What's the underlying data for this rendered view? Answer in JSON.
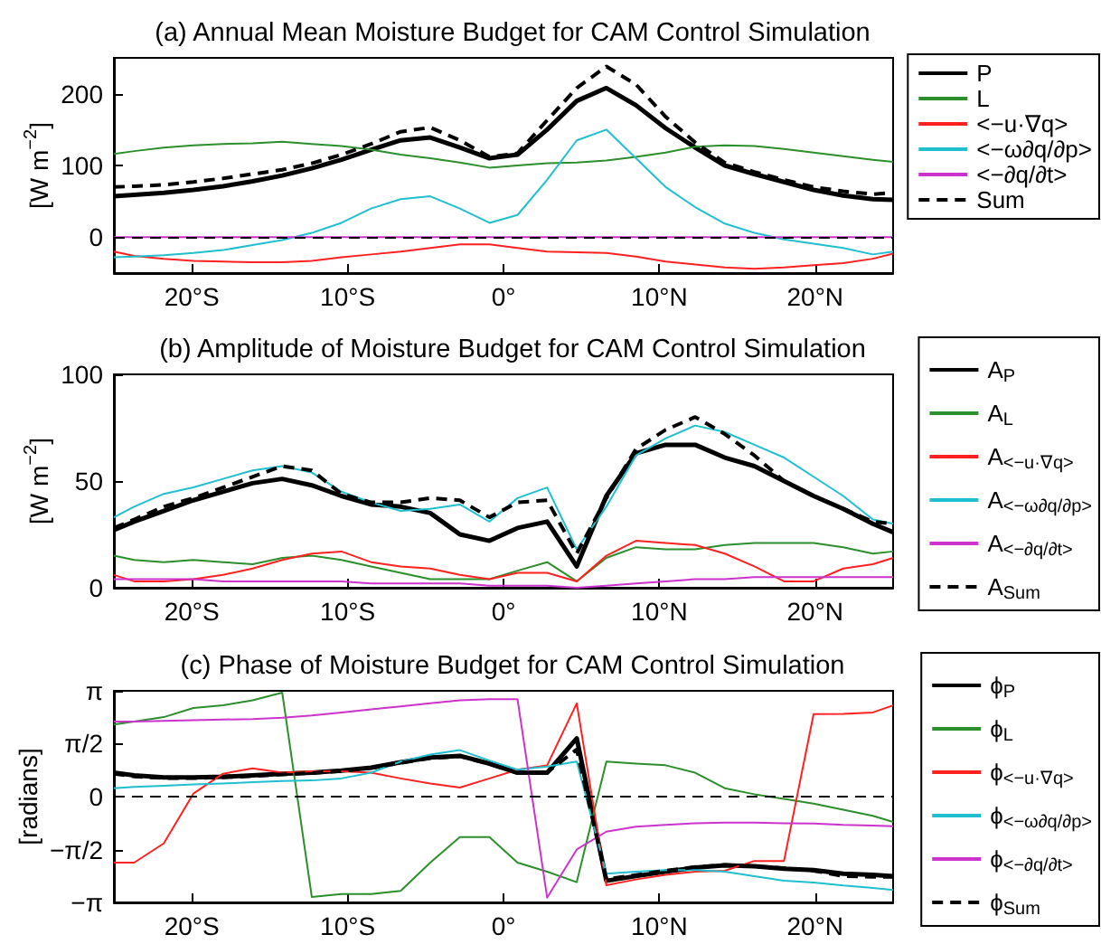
{
  "chart_data": [
    {
      "type": "line",
      "title": "(a) Annual Mean Moisture Budget for CAM Control Simulation",
      "ylabel": "[W m$^{−2}$]",
      "x": [
        -25,
        -23.7,
        -21.8,
        -19.9,
        -18,
        -16.1,
        -14.2,
        -12.3,
        -10.4,
        -8.5,
        -6.6,
        -4.7,
        -2.8,
        -0.9,
        0.9,
        2.8,
        4.7,
        6.6,
        8.5,
        10.4,
        12.3,
        14.2,
        16.1,
        18,
        19.9,
        21.8,
        23.7,
        25
      ],
      "series": [
        {
          "name": "P",
          "color": "#000000",
          "values": [
            57,
            59,
            62,
            66,
            71,
            78,
            86,
            96,
            108,
            122,
            135,
            139,
            125,
            110,
            115,
            150,
            190,
            208,
            184,
            152,
            125,
            100,
            88,
            77,
            66,
            58,
            53,
            52
          ]
        },
        {
          "name": "L",
          "color": "#2b8f2b",
          "values": [
            116,
            120,
            125,
            128,
            130,
            131,
            133,
            130,
            127,
            122,
            115,
            110,
            104,
            97,
            100,
            103,
            104,
            107,
            112,
            118,
            126,
            128,
            127,
            123,
            118,
            113,
            108,
            105
          ]
        },
        {
          "name": "<−u·∇q>",
          "color": "#ff2020",
          "values": [
            -20,
            -26,
            -30,
            -33,
            -34,
            -35,
            -35,
            -33,
            -28,
            -24,
            -20,
            -15,
            -10,
            -10,
            -15,
            -20,
            -21,
            -22,
            -27,
            -34,
            -38,
            -42,
            -44,
            -42,
            -39,
            -36,
            -30,
            -23
          ]
        },
        {
          "name": "<−ω∂q/∂p>",
          "color": "#1fbfcf",
          "values": [
            -28,
            -27,
            -25,
            -22,
            -18,
            -11,
            -4,
            6,
            20,
            40,
            53,
            57,
            40,
            20,
            31,
            80,
            135,
            150,
            110,
            70,
            42,
            19,
            6,
            -3,
            -9,
            -15,
            -24,
            -20
          ]
        },
        {
          "name": "<−∂q/∂t>",
          "color": "#cc33cc",
          "values": [
            0,
            0,
            0,
            0,
            0,
            0,
            0,
            0,
            0,
            0,
            0,
            0,
            0,
            0,
            0,
            0,
            0,
            0,
            0,
            0,
            0,
            0,
            0,
            0,
            0,
            0,
            0,
            0
          ]
        },
        {
          "name": "Sum",
          "color": "#000000",
          "line_style": "dashed",
          "values": [
            70,
            71,
            73,
            77,
            82,
            88,
            94,
            103,
            115,
            130,
            147,
            153,
            135,
            112,
            117,
            163,
            208,
            238,
            213,
            168,
            132,
            104,
            91,
            80,
            70,
            64,
            60,
            62
          ]
        }
      ],
      "xlim": [
        -25,
        25
      ],
      "xticks": [
        {
          "value": -20,
          "label": "20°S"
        },
        {
          "value": -10,
          "label": "10°S"
        },
        {
          "value": 0,
          "label": "0°"
        },
        {
          "value": 10,
          "label": "10°N"
        },
        {
          "value": 20,
          "label": "20°N"
        }
      ],
      "ylim": [
        -50,
        250
      ],
      "yticks": [
        0,
        100,
        200
      ],
      "legend": "right",
      "marker": "none",
      "ref_lines": [
        {
          "axis": "y",
          "value": 0,
          "line_style": "dashed",
          "color": "#000000"
        }
      ]
    },
    {
      "type": "line",
      "title": "(b) Amplitude of Moisture Budget for CAM Control Simulation",
      "ylabel": "[W m$^{−2}$]",
      "x": [
        -25,
        -23.7,
        -21.8,
        -19.9,
        -18,
        -16.1,
        -14.2,
        -12.3,
        -10.4,
        -8.5,
        -6.6,
        -4.7,
        -2.8,
        -0.9,
        0.9,
        2.8,
        4.7,
        6.6,
        8.5,
        10.4,
        12.3,
        14.2,
        16.1,
        18,
        19.9,
        21.8,
        23.7,
        25
      ],
      "series": [
        {
          "name": "A$_{P}$",
          "color": "#000000",
          "values": [
            27,
            31,
            36,
            41,
            45,
            49,
            51,
            48,
            43,
            39,
            38,
            35,
            25,
            22,
            28,
            31,
            10,
            43,
            63,
            67,
            67,
            61,
            57,
            50,
            43,
            37,
            30,
            26
          ]
        },
        {
          "name": "A$_{L}$",
          "color": "#2b8f2b",
          "values": [
            15,
            13,
            12,
            13,
            12,
            11,
            14,
            15,
            13,
            10,
            7,
            4,
            4,
            4,
            8,
            12,
            3,
            14,
            19,
            18,
            18,
            20,
            21,
            21,
            21,
            19,
            16,
            17
          ]
        },
        {
          "name": "A$_{<−u·∇q>}$",
          "color": "#ff2020",
          "values": [
            6,
            3,
            3,
            4,
            6,
            9,
            13,
            16,
            17,
            12,
            10,
            9,
            6,
            4,
            7,
            7,
            3,
            15,
            22,
            21,
            20,
            16,
            10,
            3,
            3,
            9,
            11,
            14
          ]
        },
        {
          "name": "A$_{<−ω∂q/∂p>}$",
          "color": "#1fbfcf",
          "values": [
            33,
            38,
            44,
            47,
            51,
            55,
            57,
            54,
            45,
            40,
            36,
            37,
            39,
            31,
            42,
            47,
            18,
            38,
            62,
            70,
            76,
            73,
            67,
            61,
            52,
            43,
            32,
            30
          ]
        },
        {
          "name": "A$_{<−∂q/∂t>}$",
          "color": "#cc33cc",
          "values": [
            4,
            4,
            4,
            4,
            3,
            3,
            3,
            3,
            3,
            2,
            2,
            2,
            2,
            1,
            1,
            1,
            0,
            1,
            2,
            3,
            4,
            4,
            5,
            5,
            5,
            5,
            5,
            5
          ]
        },
        {
          "name": "A$_{Sum}$",
          "color": "#000000",
          "line_style": "dashed",
          "values": [
            28,
            32,
            38,
            42,
            47,
            52,
            57,
            55,
            44,
            40,
            40,
            42,
            41,
            33,
            40,
            41,
            16,
            42,
            65,
            74,
            80,
            72,
            62,
            50,
            43,
            37,
            31,
            30
          ]
        }
      ],
      "xlim": [
        -25,
        25
      ],
      "xticks": [
        {
          "value": -20,
          "label": "20°S"
        },
        {
          "value": -10,
          "label": "10°S"
        },
        {
          "value": 0,
          "label": "0°"
        },
        {
          "value": 10,
          "label": "10°N"
        },
        {
          "value": 20,
          "label": "20°N"
        }
      ],
      "ylim": [
        0,
        100
      ],
      "yticks": [
        0,
        50,
        100
      ],
      "legend": "right",
      "marker": "none"
    },
    {
      "type": "line",
      "title": "(c) Phase of Moisture Budget for CAM Control Simulation",
      "ylabel": "[radians]",
      "x": [
        -25,
        -23.7,
        -21.8,
        -19.9,
        -18,
        -16.1,
        -14.2,
        -12.3,
        -10.4,
        -8.5,
        -6.6,
        -4.7,
        -2.8,
        -0.9,
        0.9,
        2.8,
        4.7,
        6.6,
        8.5,
        10.4,
        12.3,
        14.2,
        16.1,
        18,
        19.9,
        21.8,
        23.7,
        25
      ],
      "series": [
        {
          "name": "ϕ$_{P}$",
          "color": "#000000",
          "values": [
            0.71,
            0.63,
            0.57,
            0.57,
            0.59,
            0.63,
            0.68,
            0.71,
            0.77,
            0.86,
            1.02,
            1.16,
            1.21,
            0.98,
            0.71,
            0.71,
            1.73,
            -2.5,
            -2.36,
            -2.23,
            -2.11,
            -2.04,
            -2.07,
            -2.14,
            -2.18,
            -2.29,
            -2.32,
            -2.36
          ]
        },
        {
          "name": "ϕ$_{L}$",
          "color": "#2b8f2b",
          "values": [
            2.14,
            2.23,
            2.36,
            2.63,
            2.71,
            2.86,
            3.09,
            -2.98,
            -2.89,
            -2.89,
            -2.8,
            -1.96,
            -1.2,
            -1.2,
            -1.96,
            -2.23,
            -2.54,
            1.04,
            0.98,
            0.93,
            0.71,
            0.25,
            0.07,
            -0.07,
            -0.21,
            -0.39,
            -0.57,
            -0.75
          ]
        },
        {
          "name": "ϕ$_{<−u·∇q>}$",
          "color": "#ff2020",
          "values": [
            -1.96,
            -1.96,
            -1.39,
            0.09,
            0.68,
            0.84,
            0.71,
            0.75,
            0.75,
            0.71,
            0.54,
            0.39,
            0.27,
            0.54,
            0.8,
            0.93,
            2.77,
            -2.63,
            -2.46,
            -2.32,
            -2.23,
            -2.2,
            -1.91,
            -1.91,
            2.45,
            2.46,
            2.5,
            2.71
          ]
        },
        {
          "name": "ϕ$_{<−ω∂q/∂p>}$",
          "color": "#1fbfcf",
          "values": [
            0.25,
            0.29,
            0.32,
            0.36,
            0.39,
            0.43,
            0.46,
            0.48,
            0.54,
            0.71,
            1.04,
            1.25,
            1.38,
            1.07,
            0.8,
            0.89,
            1.04,
            -2.29,
            -2.23,
            -2.18,
            -2.18,
            -2.23,
            -2.36,
            -2.5,
            -2.55,
            -2.64,
            -2.71,
            -2.77
          ]
        },
        {
          "name": "ϕ$_{<−∂q/∂t>}$",
          "color": "#cc33cc",
          "values": [
            2.23,
            2.23,
            2.25,
            2.27,
            2.29,
            2.3,
            2.34,
            2.41,
            2.5,
            2.59,
            2.68,
            2.77,
            2.86,
            2.89,
            2.89,
            -3.0,
            -1.57,
            -1.04,
            -0.89,
            -0.84,
            -0.79,
            -0.77,
            -0.77,
            -0.79,
            -0.8,
            -0.84,
            -0.86,
            -0.88
          ]
        },
        {
          "name": "ϕ$_{Sum}$",
          "color": "#000000",
          "line_style": "dashed",
          "values": [
            0.68,
            0.6,
            0.55,
            0.55,
            0.57,
            0.61,
            0.66,
            0.7,
            0.76,
            0.85,
            1.0,
            1.14,
            1.2,
            0.97,
            0.7,
            0.72,
            1.4,
            -2.45,
            -2.33,
            -2.2,
            -2.09,
            -2.03,
            -2.07,
            -2.12,
            -2.2,
            -2.36,
            -2.38,
            -2.38
          ]
        }
      ],
      "xlim": [
        -25,
        25
      ],
      "xticks": [
        {
          "value": -20,
          "label": "20°S"
        },
        {
          "value": -10,
          "label": "10°S"
        },
        {
          "value": 0,
          "label": "0°"
        },
        {
          "value": 10,
          "label": "10°N"
        },
        {
          "value": 20,
          "label": "20°N"
        }
      ],
      "ylim": [
        -3.14159,
        3.14159
      ],
      "yticks": [
        {
          "value": -3.14159,
          "label": "−π"
        },
        {
          "value": -1.5708,
          "label": "−π/2"
        },
        0,
        {
          "value": 1.5708,
          "label": "π/2"
        },
        {
          "value": 3.14159,
          "label": "π"
        }
      ],
      "legend": "right",
      "marker": "none",
      "ref_lines": [
        {
          "axis": "y",
          "value": 0,
          "line_style": "dashed",
          "color": "#000000"
        }
      ]
    }
  ]
}
